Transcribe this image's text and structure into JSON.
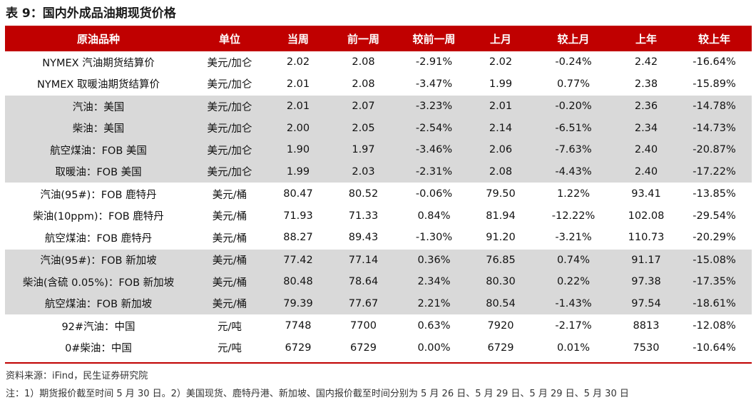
{
  "title": "表 9：国内外成品油期现货价格",
  "headers": [
    "原油品种",
    "单位",
    "当周",
    "前一周",
    "较前一周",
    "上月",
    "较上月",
    "上年",
    "较上年"
  ],
  "rows": [
    {
      "name": "NYMEX 汽油期货结算价",
      "unit": "美元/加仑",
      "cur": "2.02",
      "prev": "2.08",
      "wow": "-2.91%",
      "lastm": "2.02",
      "mom": "-0.24%",
      "lasty": "2.42",
      "yoy": "-16.64%"
    },
    {
      "name": "NYMEX 取暖油期货结算价",
      "unit": "美元/加仑",
      "cur": "2.01",
      "prev": "2.08",
      "wow": "-3.47%",
      "lastm": "1.99",
      "mom": "0.77%",
      "lasty": "2.38",
      "yoy": "-15.89%"
    },
    {
      "name": "汽油：美国",
      "unit": "美元/加仑",
      "cur": "2.01",
      "prev": "2.07",
      "wow": "-3.23%",
      "lastm": "2.01",
      "mom": "-0.20%",
      "lasty": "2.36",
      "yoy": "-14.78%"
    },
    {
      "name": "柴油：美国",
      "unit": "美元/加仑",
      "cur": "2.00",
      "prev": "2.05",
      "wow": "-2.54%",
      "lastm": "2.14",
      "mom": "-6.51%",
      "lasty": "2.34",
      "yoy": "-14.73%"
    },
    {
      "name": "航空煤油：FOB 美国",
      "unit": "美元/加仑",
      "cur": "1.90",
      "prev": "1.97",
      "wow": "-3.46%",
      "lastm": "2.06",
      "mom": "-7.63%",
      "lasty": "2.40",
      "yoy": "-20.87%"
    },
    {
      "name": "取暖油：FOB 美国",
      "unit": "美元/加仑",
      "cur": "1.99",
      "prev": "2.03",
      "wow": "-2.31%",
      "lastm": "2.08",
      "mom": "-4.43%",
      "lasty": "2.40",
      "yoy": "-17.22%"
    },
    {
      "name": "汽油(95#)：FOB 鹿特丹",
      "unit": "美元/桶",
      "cur": "80.47",
      "prev": "80.52",
      "wow": "-0.06%",
      "lastm": "79.50",
      "mom": "1.22%",
      "lasty": "93.41",
      "yoy": "-13.85%"
    },
    {
      "name": "柴油(10ppm)：FOB 鹿特丹",
      "unit": "美元/桶",
      "cur": "71.93",
      "prev": "71.33",
      "wow": "0.84%",
      "lastm": "81.94",
      "mom": "-12.22%",
      "lasty": "102.08",
      "yoy": "-29.54%"
    },
    {
      "name": "航空煤油：FOB 鹿特丹",
      "unit": "美元/桶",
      "cur": "88.27",
      "prev": "89.43",
      "wow": "-1.30%",
      "lastm": "91.20",
      "mom": "-3.21%",
      "lasty": "110.73",
      "yoy": "-20.29%"
    },
    {
      "name": "汽油(95#)：FOB 新加坡",
      "unit": "美元/桶",
      "cur": "77.42",
      "prev": "77.14",
      "wow": "0.36%",
      "lastm": "76.85",
      "mom": "0.74%",
      "lasty": "91.17",
      "yoy": "-15.08%"
    },
    {
      "name": "柴油(含硫 0.05%)：FOB 新加坡",
      "unit": "美元/桶",
      "cur": "80.48",
      "prev": "78.64",
      "wow": "2.34%",
      "lastm": "80.30",
      "mom": "0.22%",
      "lasty": "97.38",
      "yoy": "-17.35%"
    },
    {
      "name": "航空煤油：FOB 新加坡",
      "unit": "美元/桶",
      "cur": "79.39",
      "prev": "77.67",
      "wow": "2.21%",
      "lastm": "80.54",
      "mom": "-1.43%",
      "lasty": "97.54",
      "yoy": "-18.61%"
    },
    {
      "name": "92#汽油：中国",
      "unit": "元/吨",
      "cur": "7748",
      "prev": "7700",
      "wow": "0.63%",
      "lastm": "7920",
      "mom": "-2.17%",
      "lasty": "8813",
      "yoy": "-12.08%"
    },
    {
      "name": "0#柴油：中国",
      "unit": "元/吨",
      "cur": "6729",
      "prev": "6729",
      "wow": "0.00%",
      "lastm": "6729",
      "mom": "0.01%",
      "lasty": "7530",
      "yoy": "-10.64%"
    }
  ],
  "source": "资料来源：iFind，民生证券研究院",
  "note": "注：1）期货报价截至时间 5 月 30 日。2）美国现货、鹿特丹港、新加坡、国内报价截至时间分别为 5 月 26 日、5 月 29 日、5 月 29 日、5 月 30 日",
  "colors": {
    "header_bg": "#c00000",
    "band_bg": "#d9d9d9",
    "positive": "#e00000",
    "negative": "#00a040"
  }
}
